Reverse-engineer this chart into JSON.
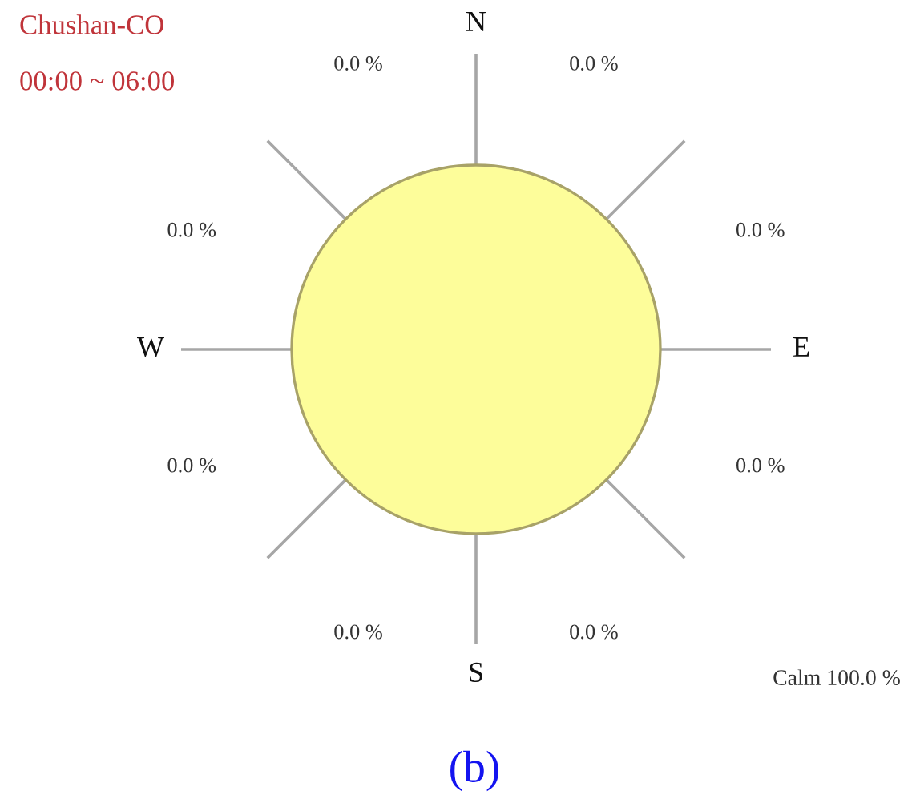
{
  "chart_data": {
    "type": "other",
    "title": "Chushan-CO",
    "subtitle": "00:00 ~ 06:00",
    "categories": [
      "N",
      "E",
      "S",
      "W"
    ],
    "series": [
      {
        "values": [
          0.0,
          0.0,
          0.0,
          0.0
        ],
        "value_labels": [
          "0.0 %",
          "0.0 %",
          "0.0 %",
          "0.0 %"
        ]
      },
      {
        "values": [
          0.0,
          0.0,
          0.0,
          0.0
        ],
        "value_labels": [
          "0.0 %",
          "0.0 %",
          "0.0 %",
          "0.0 %"
        ]
      }
    ],
    "annotations": [
      "Calm 100.0 %",
      "(b)"
    ]
  }
}
